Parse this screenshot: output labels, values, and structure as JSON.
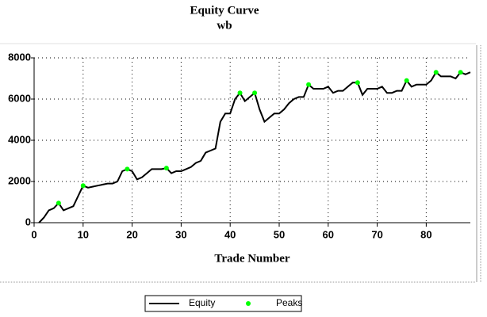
{
  "chart_data": {
    "type": "line",
    "title": "Equity Curve",
    "subtitle": "wb",
    "x_label": "Trade Number",
    "series": [
      {
        "name": "Equity",
        "color": "#000000",
        "x": [
          1,
          2,
          3,
          4,
          5,
          6,
          7,
          8,
          9,
          10,
          11,
          12,
          13,
          14,
          15,
          16,
          17,
          18,
          19,
          20,
          21,
          22,
          23,
          24,
          25,
          26,
          27,
          28,
          29,
          30,
          31,
          32,
          33,
          34,
          35,
          36,
          37,
          38,
          39,
          40,
          41,
          42,
          43,
          44,
          45,
          46,
          47,
          48,
          49,
          50,
          51,
          52,
          53,
          54,
          55,
          56,
          57,
          58,
          59,
          60,
          61,
          62,
          63,
          64,
          65,
          66,
          67,
          68,
          69,
          70,
          71,
          72,
          73,
          74,
          75,
          76,
          77,
          78,
          79,
          80,
          81,
          82,
          83,
          84,
          85,
          86,
          87,
          88,
          89
        ],
        "values": [
          0,
          250,
          600,
          700,
          950,
          600,
          700,
          800,
          1300,
          1800,
          1700,
          1750,
          1800,
          1850,
          1900,
          1900,
          2000,
          2500,
          2600,
          2500,
          2100,
          2200,
          2400,
          2600,
          2600,
          2600,
          2650,
          2400,
          2500,
          2500,
          2600,
          2700,
          2900,
          3000,
          3400,
          3500,
          3600,
          4900,
          5300,
          5300,
          6000,
          6300,
          5900,
          6100,
          6300,
          5500,
          4900,
          5100,
          5300,
          5300,
          5500,
          5800,
          6000,
          6100,
          6100,
          6700,
          6500,
          6500,
          6500,
          6600,
          6300,
          6400,
          6400,
          6600,
          6800,
          6800,
          6200,
          6500,
          6500,
          6500,
          6600,
          6300,
          6300,
          6400,
          6400,
          6900,
          6600,
          6700,
          6700,
          6700,
          6900,
          7300,
          7100,
          7100,
          7100,
          7000,
          7300,
          7200,
          7300
        ]
      },
      {
        "name": "Peaks",
        "color": "#00ff00",
        "type": "scatter",
        "x": [
          5,
          10,
          19,
          27,
          42,
          45,
          56,
          66,
          76,
          82,
          87
        ],
        "values": [
          950,
          1800,
          2600,
          2650,
          6300,
          6300,
          6700,
          6800,
          6900,
          7300,
          7300
        ]
      }
    ],
    "xlim": [
      0,
      89
    ],
    "xticks": [
      0,
      10,
      20,
      30,
      40,
      50,
      60,
      70,
      80
    ],
    "ylim": [
      0,
      8000
    ],
    "yticks": [
      0,
      2000,
      4000,
      6000,
      8000
    ],
    "grid": true
  }
}
